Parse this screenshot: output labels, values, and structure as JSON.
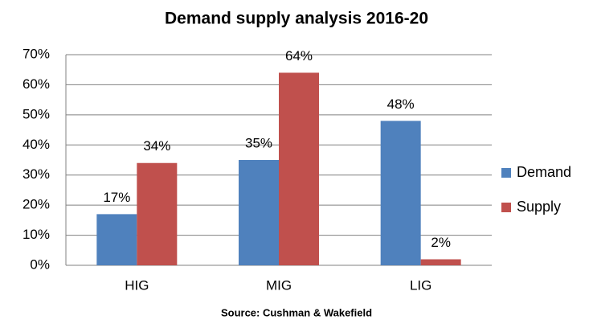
{
  "chart_data": {
    "type": "bar",
    "title": "Demand supply analysis 2016-20",
    "categories": [
      "HIG",
      "MIG",
      "LIG"
    ],
    "series": [
      {
        "name": "Demand",
        "color": "#4f81bd",
        "values": [
          17,
          35,
          48
        ],
        "value_labels": [
          "17%",
          "35%",
          "48%"
        ]
      },
      {
        "name": "Supply",
        "color": "#c0504d",
        "values": [
          34,
          64,
          2
        ],
        "value_labels": [
          "34%",
          "64%",
          "2%"
        ]
      }
    ],
    "ylim": [
      0,
      70
    ],
    "yticks": [
      {
        "value": 0,
        "label": "0%"
      },
      {
        "value": 10,
        "label": "10%"
      },
      {
        "value": 20,
        "label": "20%"
      },
      {
        "value": 30,
        "label": "30%"
      },
      {
        "value": 40,
        "label": "40%"
      },
      {
        "value": 50,
        "label": "50%"
      },
      {
        "value": 60,
        "label": "60%"
      },
      {
        "value": 70,
        "label": "70%"
      }
    ],
    "grid": true,
    "legend": "right",
    "source": "Source: Cushman & Wakefield"
  }
}
